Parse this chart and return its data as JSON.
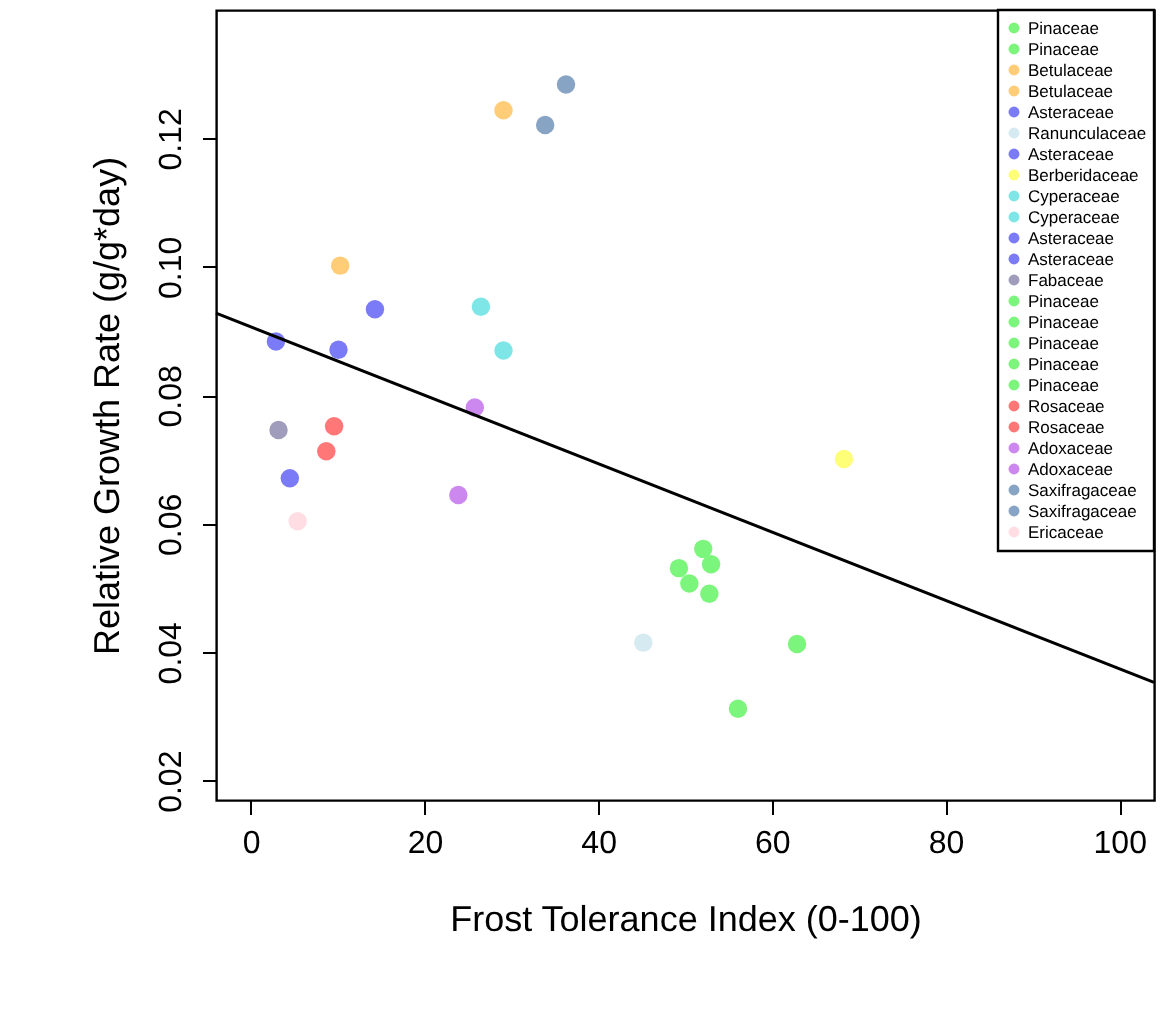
{
  "chart_data": {
    "type": "scatter",
    "xlabel": "Frost Tolerance Index (0-100)",
    "ylabel": "Relative Growth Rate (g/g*day)",
    "xlim": [
      -4,
      104
    ],
    "ylim": [
      0.017,
      0.14
    ],
    "xticks": [
      0,
      20,
      40,
      60,
      80,
      100
    ],
    "yticks": [
      0.02,
      0.04,
      0.06,
      0.08,
      {
        "value": 0.1,
        "label": "0.10"
      },
      0.12
    ],
    "grid": false,
    "legend": "top right",
    "marker": "circle",
    "series": [
      {
        "name": "Pinaceae",
        "color": "#7cf57c",
        "x": [
          52.1
        ],
        "values": [
          0.0561
        ]
      },
      {
        "name": "Pinaceae",
        "color": "#7cf57c",
        "x": [
          53.0
        ],
        "values": [
          0.0537
        ]
      },
      {
        "name": "Betulaceae",
        "color": "#ffcc77",
        "x": [
          29.1
        ],
        "values": [
          0.1244
        ]
      },
      {
        "name": "Betulaceae",
        "color": "#ffcc77",
        "x": [
          10.3
        ],
        "values": [
          0.1002
        ]
      },
      {
        "name": "Asteraceae",
        "color": "#7b7bf7",
        "x": [
          14.3
        ],
        "values": [
          0.0934
        ]
      },
      {
        "name": "Ranunculaceae",
        "color": "#d6eaf2",
        "x": [
          45.2
        ],
        "values": [
          0.0415
        ]
      },
      {
        "name": "Asteraceae",
        "color": "#7b7bf7",
        "x": [
          2.9
        ],
        "values": [
          0.0884
        ]
      },
      {
        "name": "Berberidaceae",
        "color": "#ffff77",
        "x": [
          68.3
        ],
        "values": [
          0.0701
        ]
      },
      {
        "name": "Cyperaceae",
        "color": "#7ee6e6",
        "x": [
          26.5
        ],
        "values": [
          0.0938
        ]
      },
      {
        "name": "Cyperaceae",
        "color": "#7ee6e6",
        "x": [
          29.1
        ],
        "values": [
          0.087
        ]
      },
      {
        "name": "Asteraceae",
        "color": "#7b7bf7",
        "x": [
          10.1
        ],
        "values": [
          0.0871
        ]
      },
      {
        "name": "Asteraceae",
        "color": "#7b7bf7",
        "x": [
          4.5
        ],
        "values": [
          0.0671
        ]
      },
      {
        "name": "Fabaceae",
        "color": "#a09cbb",
        "x": [
          3.2
        ],
        "values": [
          0.0746
        ]
      },
      {
        "name": "Pinaceae",
        "color": "#7cf57c",
        "x": [
          49.3
        ],
        "values": [
          0.0531
        ]
      },
      {
        "name": "Pinaceae",
        "color": "#7cf57c",
        "x": [
          50.5
        ],
        "values": [
          0.0507
        ]
      },
      {
        "name": "Pinaceae",
        "color": "#7cf57c",
        "x": [
          52.8
        ],
        "values": [
          0.0491
        ]
      },
      {
        "name": "Pinaceae",
        "color": "#7cf57c",
        "x": [
          62.9
        ],
        "values": [
          0.0413
        ]
      },
      {
        "name": "Pinaceae",
        "color": "#7cf57c",
        "x": [
          56.1
        ],
        "values": [
          0.0312
        ]
      },
      {
        "name": "Rosaceae",
        "color": "#ff7777",
        "x": [
          9.6
        ],
        "values": [
          0.0752
        ]
      },
      {
        "name": "Rosaceae",
        "color": "#ff7777",
        "x": [
          8.7
        ],
        "values": [
          0.0713
        ]
      },
      {
        "name": "Adoxaceae",
        "color": "#cc88ee",
        "x": [
          25.8
        ],
        "values": [
          0.0781
        ]
      },
      {
        "name": "Adoxaceae",
        "color": "#cc88ee",
        "x": [
          23.9
        ],
        "values": [
          0.0645
        ]
      },
      {
        "name": "Saxifragaceae",
        "color": "#88a4c4",
        "x": [
          36.3
        ],
        "values": [
          0.1284
        ]
      },
      {
        "name": "Saxifragaceae",
        "color": "#88a4c4",
        "x": [
          33.9
        ],
        "values": [
          0.1221
        ]
      },
      {
        "name": "Ericaceae",
        "color": "#ffdde3",
        "x": [
          5.4
        ],
        "values": [
          0.0604
        ]
      },
      {
        "type": "line",
        "color": "#000000",
        "line_style": "solid",
        "marker": "none",
        "x": [
          -4,
          104
        ],
        "values": [
          0.0928,
          0.0353
        ]
      }
    ]
  }
}
